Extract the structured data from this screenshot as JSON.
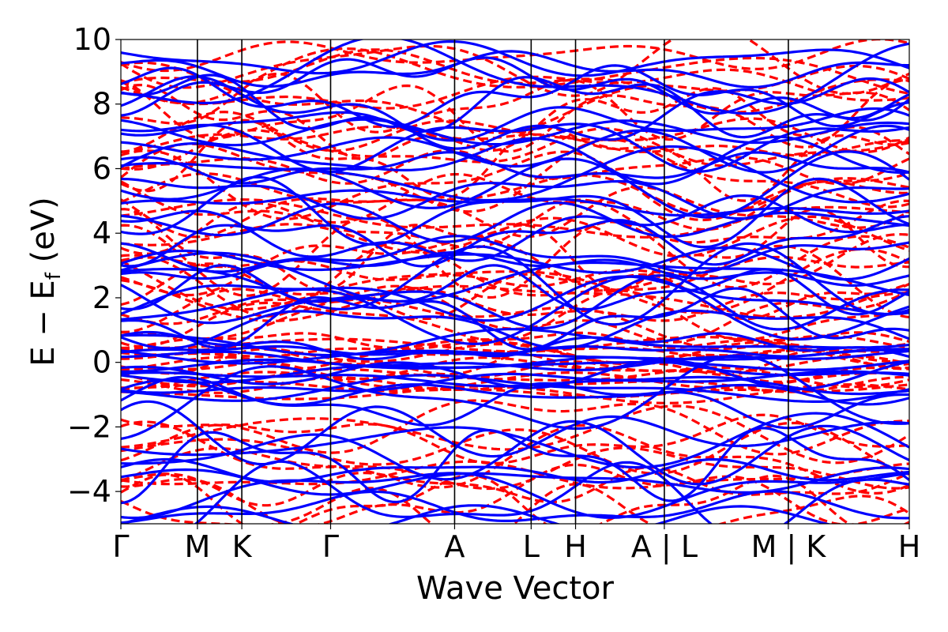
{
  "chart_data": {
    "type": "line",
    "xlabel": "Wave Vector",
    "ylabel_main": "E − E",
    "ylabel_sub": "f",
    "ylabel_unit": " (eV)",
    "ylim": [
      -5,
      10
    ],
    "yticks": [
      -4,
      -2,
      0,
      2,
      4,
      6,
      8,
      10
    ],
    "ytick_labels": [
      "−4",
      "−2",
      "0",
      "2",
      "4",
      "6",
      "8",
      "10"
    ],
    "xlim": [
      0,
      10.3
    ],
    "kpoints": [
      {
        "x": 0.0,
        "label": "Γ"
      },
      {
        "x": 1.0,
        "label": "M"
      },
      {
        "x": 1.58,
        "label": "K"
      },
      {
        "x": 2.74,
        "label": "Γ"
      },
      {
        "x": 4.36,
        "label": "A"
      },
      {
        "x": 5.36,
        "label": "L"
      },
      {
        "x": 5.94,
        "label": "H"
      },
      {
        "x": 7.1,
        "label": "A | L"
      },
      {
        "x": 8.72,
        "label": "M | K"
      },
      {
        "x": 10.3,
        "label": "H"
      }
    ],
    "series": [
      {
        "style": "dashed",
        "color": "#ff0000",
        "band_count": 58
      },
      {
        "style": "solid",
        "color": "#0000ff",
        "band_count": 56
      }
    ]
  }
}
